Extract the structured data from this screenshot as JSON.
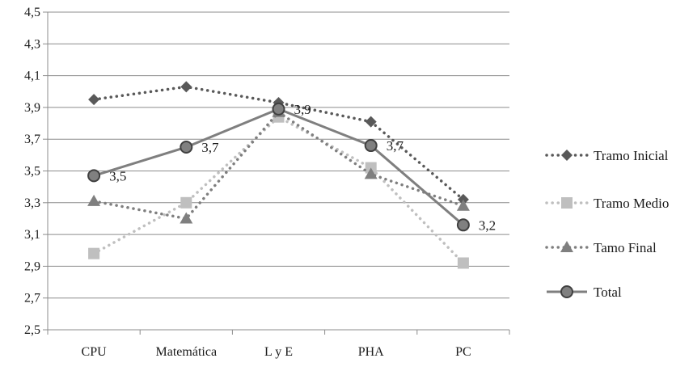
{
  "chart_data": {
    "type": "line",
    "categories": [
      "CPU",
      "Matemática",
      "L y E",
      "PHA",
      "PC"
    ],
    "ylim": [
      2.5,
      4.5
    ],
    "yticks": [
      "2,5",
      "2,7",
      "2,9",
      "3,1",
      "3,3",
      "3,5",
      "3,7",
      "3,9",
      "4,1",
      "4,3",
      "4,5"
    ],
    "ytick_values": [
      2.5,
      2.7,
      2.9,
      3.1,
      3.3,
      3.5,
      3.7,
      3.9,
      4.1,
      4.3,
      4.5
    ],
    "grid": true,
    "legend_position": "right",
    "series": [
      {
        "name": "Tramo Inicial",
        "values": [
          3.95,
          4.03,
          3.93,
          3.81,
          3.32
        ],
        "color": "#595959",
        "line": "dotted",
        "marker": "diamond"
      },
      {
        "name": "Tramo Medio",
        "values": [
          2.98,
          3.3,
          3.84,
          3.52,
          2.92
        ],
        "color": "#bfbfbf",
        "line": "dotted",
        "marker": "square"
      },
      {
        "name": "Tamo Final",
        "values": [
          3.31,
          3.2,
          3.87,
          3.48,
          3.28
        ],
        "color": "#7f7f7f",
        "line": "dotted",
        "marker": "triangle"
      },
      {
        "name": "Total",
        "values": [
          3.47,
          3.65,
          3.89,
          3.66,
          3.16
        ],
        "color": "#7f7f7f",
        "line": "solid",
        "marker": "circle",
        "data_labels": [
          "3,5",
          "3,7",
          "3,9",
          "3,7",
          "3,2"
        ]
      }
    ]
  }
}
